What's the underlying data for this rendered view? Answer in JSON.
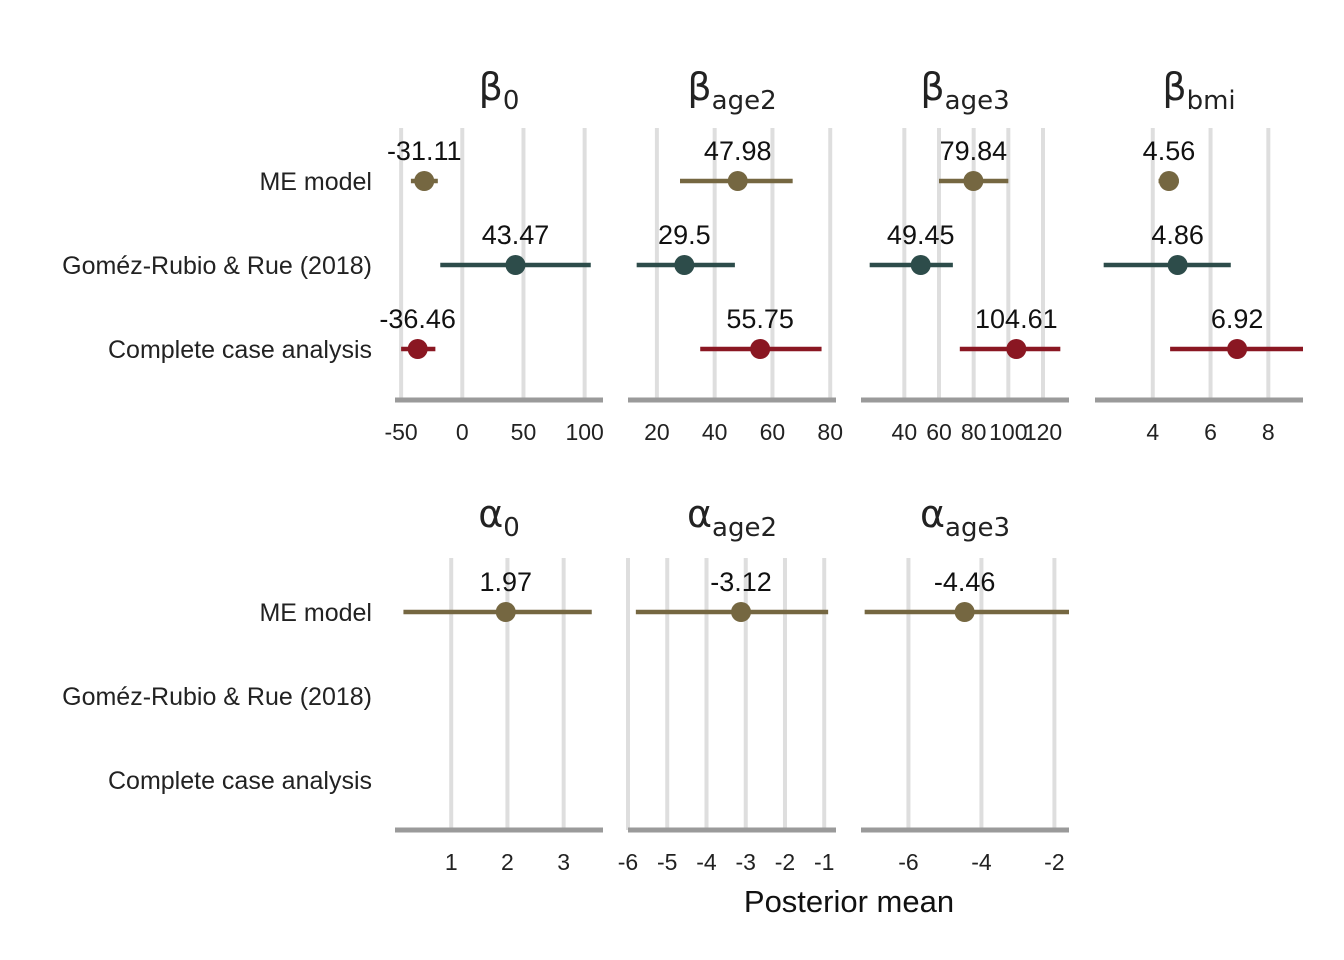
{
  "chart_data": {
    "type": "scatter",
    "xlabel": "Posterior mean",
    "rows": [
      "ME model",
      "Goméz-Rubio & Rue (2018)",
      "Complete case analysis"
    ],
    "colors": {
      "ME model": "#756741",
      "Goméz-Rubio & Rue (2018)": "#2d4c4a",
      "Complete case analysis": "#8a1722"
    },
    "panels": [
      {
        "symbol": "β",
        "subscript": "0",
        "xlim": [
          -55,
          115
        ],
        "ticks": [
          -50,
          0,
          50,
          100
        ],
        "points": [
          {
            "row": "ME model",
            "mean": -31.11,
            "lower": -42,
            "upper": -20,
            "label": "-31.11"
          },
          {
            "row": "Goméz-Rubio & Rue (2018)",
            "mean": 43.47,
            "lower": -18,
            "upper": 105,
            "label": "43.47"
          },
          {
            "row": "Complete case analysis",
            "mean": -36.46,
            "lower": -50,
            "upper": -22,
            "label": "-36.46"
          }
        ]
      },
      {
        "symbol": "β",
        "subscript": "age2",
        "xlim": [
          10,
          82
        ],
        "ticks": [
          20,
          40,
          60,
          80
        ],
        "points": [
          {
            "row": "ME model",
            "mean": 47.98,
            "lower": 28,
            "upper": 67,
            "label": "47.98"
          },
          {
            "row": "Goméz-Rubio & Rue (2018)",
            "mean": 29.5,
            "lower": 13,
            "upper": 47,
            "label": "29.5"
          },
          {
            "row": "Complete case analysis",
            "mean": 55.75,
            "lower": 35,
            "upper": 77,
            "label": "55.75"
          }
        ]
      },
      {
        "symbol": "β",
        "subscript": "age3",
        "xlim": [
          15,
          135
        ],
        "ticks": [
          40,
          60,
          80,
          100,
          120
        ],
        "points": [
          {
            "row": "ME model",
            "mean": 79.84,
            "lower": 60,
            "upper": 100,
            "label": "79.84"
          },
          {
            "row": "Goméz-Rubio & Rue (2018)",
            "mean": 49.45,
            "lower": 20,
            "upper": 68,
            "label": "49.45"
          },
          {
            "row": "Complete case analysis",
            "mean": 104.61,
            "lower": 72,
            "upper": 130,
            "label": "104.61"
          }
        ]
      },
      {
        "symbol": "β",
        "subscript": "bmi",
        "xlim": [
          2,
          9.2
        ],
        "ticks": [
          4,
          6,
          8
        ],
        "points": [
          {
            "row": "ME model",
            "mean": 4.56,
            "lower": 4.2,
            "upper": 4.9,
            "label": "4.56"
          },
          {
            "row": "Goméz-Rubio & Rue (2018)",
            "mean": 4.86,
            "lower": 2.3,
            "upper": 6.7,
            "label": "4.86"
          },
          {
            "row": "Complete case analysis",
            "mean": 6.92,
            "lower": 4.6,
            "upper": 9.2,
            "label": "6.92"
          }
        ]
      },
      {
        "symbol": "α",
        "subscript": "0",
        "xlim": [
          0,
          3.7
        ],
        "ticks": [
          1,
          2,
          3
        ],
        "points": [
          {
            "row": "ME model",
            "mean": 1.97,
            "lower": 0.15,
            "upper": 3.5,
            "label": "1.97"
          }
        ]
      },
      {
        "symbol": "α",
        "subscript": "age2",
        "xlim": [
          -6,
          -0.7
        ],
        "ticks": [
          -6,
          -5,
          -4,
          -3,
          -2,
          -1
        ],
        "points": [
          {
            "row": "ME model",
            "mean": -3.12,
            "lower": -5.8,
            "upper": -0.9,
            "label": "-3.12"
          }
        ]
      },
      {
        "symbol": "α",
        "subscript": "age3",
        "xlim": [
          -7.3,
          -1.6
        ],
        "ticks": [
          -6,
          -4,
          -2
        ],
        "points": [
          {
            "row": "ME model",
            "mean": -4.46,
            "lower": -7.2,
            "upper": -1.6,
            "label": "-4.46"
          }
        ]
      }
    ]
  }
}
